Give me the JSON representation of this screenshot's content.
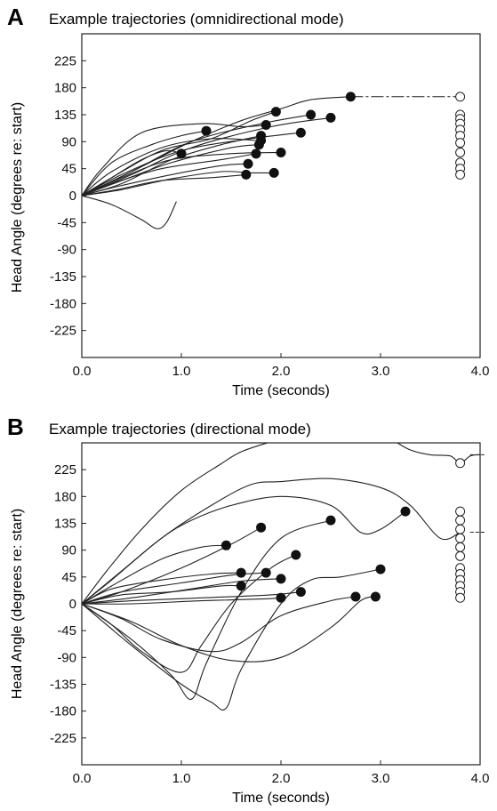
{
  "figure": {
    "panels": [
      {
        "letter": "A",
        "title": "Example trajectories (omnidirectional mode)",
        "xlabel": "Time (seconds)",
        "ylabel": "Head Angle (degrees re: start)"
      },
      {
        "letter": "B",
        "title": "Example trajectories (directional mode)",
        "xlabel": "Time (seconds)",
        "ylabel": "Head Angle (degrees re: start)"
      }
    ]
  },
  "chart_data": [
    {
      "type": "line",
      "title": "Example trajectories (omnidirectional mode)",
      "xlabel": "Time (seconds)",
      "ylabel": "Head Angle (degrees re: start)",
      "xlim": [
        0,
        4
      ],
      "ylim": [
        -270,
        270
      ],
      "xticks": [
        "0.0",
        "1.0",
        "2.0",
        "3.0",
        "4.0"
      ],
      "xtick_values": [
        0,
        1,
        2,
        3,
        4
      ],
      "yticks": [
        "225",
        "180",
        "135",
        "90",
        "45",
        "0",
        "-45",
        "-90",
        "-135",
        "-180",
        "-225"
      ],
      "ytick_values": [
        225,
        180,
        135,
        90,
        45,
        0,
        -45,
        -90,
        -135,
        -180,
        -225
      ],
      "grid": false,
      "line_color": "#222222",
      "series": [
        {
          "x": [
            0,
            0.3,
            0.7,
            1.0,
            1.25
          ],
          "y": [
            0,
            55,
            85,
            100,
            108
          ]
        },
        {
          "x": [
            0,
            0.3,
            0.6,
            0.85,
            1.0
          ],
          "y": [
            0,
            30,
            60,
            75,
            70
          ]
        },
        {
          "x": [
            0,
            0.2,
            0.6,
            1.2,
            1.6,
            1.85
          ],
          "y": [
            0,
            45,
            105,
            120,
            115,
            118
          ]
        },
        {
          "x": [
            0,
            0.3,
            0.8,
            1.3,
            1.7,
            1.95
          ],
          "y": [
            0,
            30,
            75,
            95,
            125,
            140
          ]
        },
        {
          "x": [
            0,
            0.4,
            0.9,
            1.4,
            1.8
          ],
          "y": [
            0,
            20,
            60,
            85,
            100
          ]
        },
        {
          "x": [
            0,
            0.3,
            0.8,
            1.3,
            1.75,
            1.8
          ],
          "y": [
            0,
            40,
            80,
            95,
            92,
            92
          ]
        },
        {
          "x": [
            0,
            0.4,
            0.9,
            1.5,
            1.78
          ],
          "y": [
            0,
            25,
            55,
            80,
            85
          ]
        },
        {
          "x": [
            0,
            0.3,
            0.8,
            1.4,
            1.75
          ],
          "y": [
            0,
            20,
            45,
            60,
            70
          ]
        },
        {
          "x": [
            0,
            0.35,
            0.9,
            1.4,
            1.67
          ],
          "y": [
            0,
            15,
            35,
            50,
            53
          ]
        },
        {
          "x": [
            0,
            0.35,
            0.8,
            1.3,
            1.65
          ],
          "y": [
            0,
            10,
            25,
            30,
            35
          ]
        },
        {
          "x": [
            0,
            0.4,
            0.9,
            1.4,
            1.7,
            1.93
          ],
          "y": [
            0,
            10,
            28,
            40,
            38,
            38
          ]
        },
        {
          "x": [
            0,
            0.4,
            0.9,
            1.5,
            2.0
          ],
          "y": [
            0,
            30,
            60,
            70,
            72
          ]
        },
        {
          "x": [
            0,
            0.4,
            1.0,
            1.7,
            2.2
          ],
          "y": [
            0,
            35,
            75,
            95,
            105
          ]
        },
        {
          "x": [
            0,
            0.5,
            1.1,
            1.8,
            2.3
          ],
          "y": [
            0,
            40,
            90,
            120,
            135
          ]
        },
        {
          "x": [
            0,
            0.5,
            1.1,
            1.9,
            2.5
          ],
          "y": [
            0,
            35,
            80,
            115,
            130
          ]
        },
        {
          "x": [
            0,
            0.3,
            0.6,
            0.75,
            0.85,
            0.95
          ],
          "y": [
            0,
            -15,
            -40,
            -55,
            -45,
            -10
          ]
        },
        {
          "x": [
            0,
            0.5,
            1.1,
            1.6,
            2.0,
            2.3,
            2.7
          ],
          "y": [
            0,
            40,
            90,
            125,
            145,
            160,
            165
          ]
        }
      ],
      "stop_points": {
        "x": [
          1.25,
          1.0,
          1.85,
          1.95,
          1.8,
          1.8,
          1.78,
          1.75,
          1.67,
          1.65,
          1.93,
          2.0,
          2.2,
          2.3,
          2.5,
          2.7
        ],
        "y": [
          108,
          70,
          118,
          140,
          100,
          92,
          85,
          70,
          53,
          35,
          38,
          72,
          105,
          135,
          130,
          165
        ]
      },
      "final_points": {
        "x": 3.8,
        "y": [
          165,
          135,
          128,
          120,
          110,
          100,
          88,
          72,
          55,
          45,
          35
        ]
      },
      "final_connector": {
        "x": [
          2.7,
          3.8
        ],
        "y": [
          165,
          165
        ]
      }
    },
    {
      "type": "line",
      "title": "Example trajectories (directional mode)",
      "xlabel": "Time (seconds)",
      "ylabel": "Head Angle (degrees re: start)",
      "xlim": [
        0,
        4
      ],
      "ylim": [
        -270,
        270
      ],
      "xticks": [
        "0.0",
        "1.0",
        "2.0",
        "3.0",
        "4.0"
      ],
      "xtick_values": [
        0,
        1,
        2,
        3,
        4
      ],
      "yticks": [
        "225",
        "180",
        "135",
        "90",
        "45",
        "0",
        "-45",
        "-90",
        "-135",
        "-180",
        "-225"
      ],
      "ytick_values": [
        225,
        180,
        135,
        90,
        45,
        0,
        -45,
        -90,
        -135,
        -180,
        -225
      ],
      "grid": false,
      "line_color": "#222222",
      "series": [
        {
          "x": [
            0,
            0.3,
            0.8,
            1.2,
            1.45
          ],
          "y": [
            0,
            30,
            75,
            95,
            98
          ]
        },
        {
          "x": [
            0,
            0.4,
            1.0,
            1.5,
            1.8
          ],
          "y": [
            0,
            20,
            60,
            100,
            128
          ]
        },
        {
          "x": [
            0,
            0.3,
            0.8,
            1.3,
            1.6
          ],
          "y": [
            0,
            25,
            40,
            50,
            52
          ]
        },
        {
          "x": [
            0,
            0.4,
            0.9,
            1.4,
            1.6
          ],
          "y": [
            0,
            15,
            20,
            30,
            30
          ]
        },
        {
          "x": [
            0,
            0.4,
            1.0,
            1.5,
            1.85
          ],
          "y": [
            0,
            20,
            35,
            48,
            52
          ]
        },
        {
          "x": [
            0,
            0.5,
            1.1,
            1.6,
            2.0
          ],
          "y": [
            0,
            10,
            25,
            38,
            42
          ]
        },
        {
          "x": [
            0,
            0.5,
            1.2,
            1.9,
            2.2
          ],
          "y": [
            0,
            5,
            10,
            15,
            20
          ]
        },
        {
          "x": [
            0,
            0.5,
            1.2,
            1.8,
            2.0
          ],
          "y": [
            0,
            0,
            5,
            8,
            10
          ]
        },
        {
          "x": [
            0,
            0.3,
            0.6,
            1.0,
            1.2,
            1.5,
            1.9,
            2.15
          ],
          "y": [
            0,
            -35,
            -80,
            -115,
            -70,
            0,
            60,
            82
          ]
        },
        {
          "x": [
            0,
            0.5,
            0.9,
            1.1,
            1.25,
            1.6,
            2.0,
            2.5
          ],
          "y": [
            0,
            -60,
            -120,
            -160,
            -100,
            20,
            110,
            140
          ]
        },
        {
          "x": [
            0,
            0.5,
            1.0,
            1.3,
            1.45,
            1.6,
            2.0,
            2.3,
            2.6,
            3.0
          ],
          "y": [
            0,
            -70,
            -135,
            -165,
            -175,
            -110,
            0,
            40,
            45,
            58
          ]
        },
        {
          "x": [
            0,
            0.4,
            0.8,
            1.3,
            1.6,
            2.0,
            2.5,
            2.75
          ],
          "y": [
            0,
            -25,
            -60,
            -80,
            -65,
            -20,
            5,
            12
          ]
        },
        {
          "x": [
            0,
            0.5,
            1.0,
            1.5,
            2.0,
            2.5,
            2.8,
            2.95
          ],
          "y": [
            0,
            -30,
            -70,
            -95,
            -90,
            -40,
            5,
            12
          ]
        },
        {
          "x": [
            0,
            0.4,
            0.8,
            1.1,
            1.5,
            2.0,
            2.5,
            2.8,
            3.0,
            3.25
          ],
          "y": [
            0,
            55,
            110,
            140,
            165,
            180,
            165,
            120,
            125,
            155
          ]
        },
        {
          "x": [
            0,
            0.3,
            0.8,
            1.3,
            1.7,
            2.0,
            2.5,
            3.0,
            3.3,
            3.6,
            3.8
          ],
          "y": [
            0,
            40,
            110,
            165,
            200,
            205,
            210,
            195,
            165,
            110,
            120
          ]
        },
        {
          "x": [
            0,
            0.25,
            0.6,
            1.0,
            1.4,
            1.6,
            1.9
          ],
          "y": [
            0,
            55,
            125,
            190,
            235,
            255,
            272
          ]
        },
        {
          "x": [
            3.15,
            3.3,
            3.5,
            3.7,
            3.8,
            3.9,
            4.0
          ],
          "y": [
            272,
            258,
            250,
            248,
            236,
            248,
            250
          ]
        }
      ],
      "stop_points": {
        "x": [
          1.45,
          1.8,
          1.6,
          1.6,
          1.85,
          2.0,
          2.2,
          2.0,
          2.15,
          2.5,
          3.0,
          2.75,
          2.95,
          3.25
        ],
        "y": [
          98,
          128,
          52,
          30,
          52,
          42,
          20,
          10,
          82,
          140,
          58,
          12,
          12,
          155
        ]
      },
      "final_points": {
        "x": 3.8,
        "y": [
          236,
          155,
          140,
          125,
          110,
          95,
          80,
          60,
          50,
          40,
          30,
          20,
          10
        ]
      },
      "final_dashes": {
        "x": [
          3.9,
          4.05
        ],
        "y": [
          250,
          120
        ]
      }
    }
  ]
}
